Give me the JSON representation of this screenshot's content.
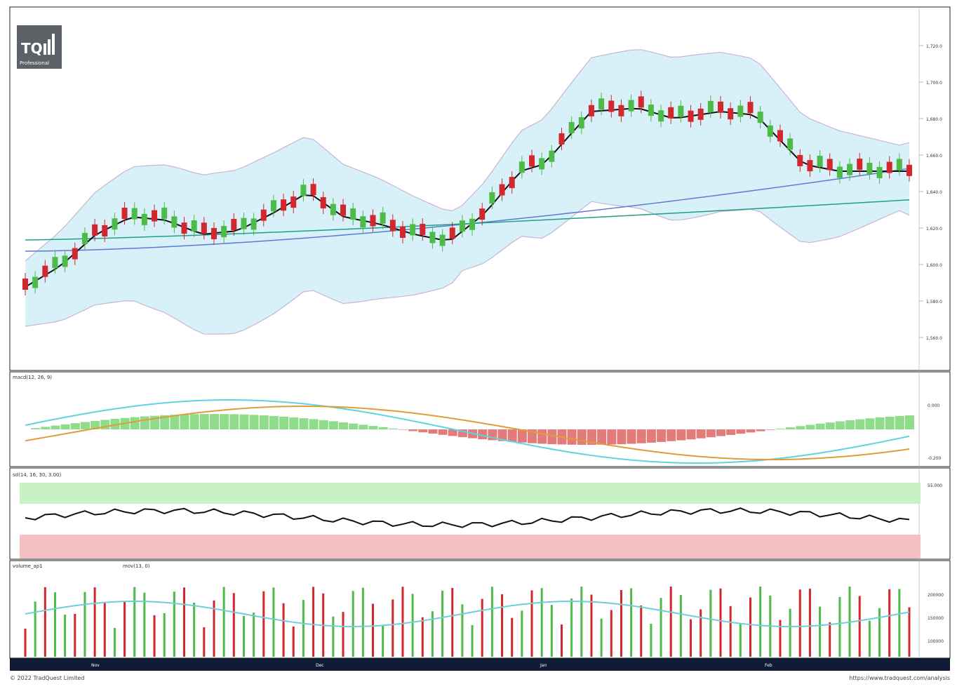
{
  "logo": {
    "text": "TQ",
    "sub": "Professional"
  },
  "panels": {
    "main": {
      "header": "",
      "price_ticks": [
        "1,720.0",
        "1,700.0",
        "1,680.0",
        "1,660.0",
        "1,640.0",
        "1,620.0",
        "1,600.0",
        "1,580.0",
        "1,560.0"
      ]
    },
    "macd": {
      "header": "macd(12, 26, 9)",
      "ticks": [
        "0.000",
        "-0.200"
      ]
    },
    "stoch": {
      "header": "sd(14, 16, 30, 3.00)",
      "ticks": [
        "55.000"
      ]
    },
    "volume": {
      "header": "volume_ap1",
      "ma_label": "mov(13, 0)",
      "ticks": [
        "200000",
        "150000",
        "100000"
      ]
    }
  },
  "xaxis": {
    "month_labels": [
      "Nov",
      "Dec",
      "Jan",
      "Feb"
    ]
  },
  "footer": {
    "left": "© 2022 TradQuest Limited",
    "right": "https://www.tradquest.com/analysis"
  },
  "colors": {
    "bull": "#4cbb47",
    "bear": "#d3272f",
    "band_fill": "#d8f0f7",
    "band_line": "#c9b4d8",
    "sma_short": "#111111",
    "sma_mid": "#5b7bd5",
    "sma_long": "#1f9e8a",
    "macd_line": "#5fd3e0",
    "signal_line": "#e09c3a",
    "hist_pos": "#8fdc8a",
    "hist_neg": "#e37b7b",
    "overbought": "#c9f2c4",
    "oversold": "#f3c1c1"
  }
}
